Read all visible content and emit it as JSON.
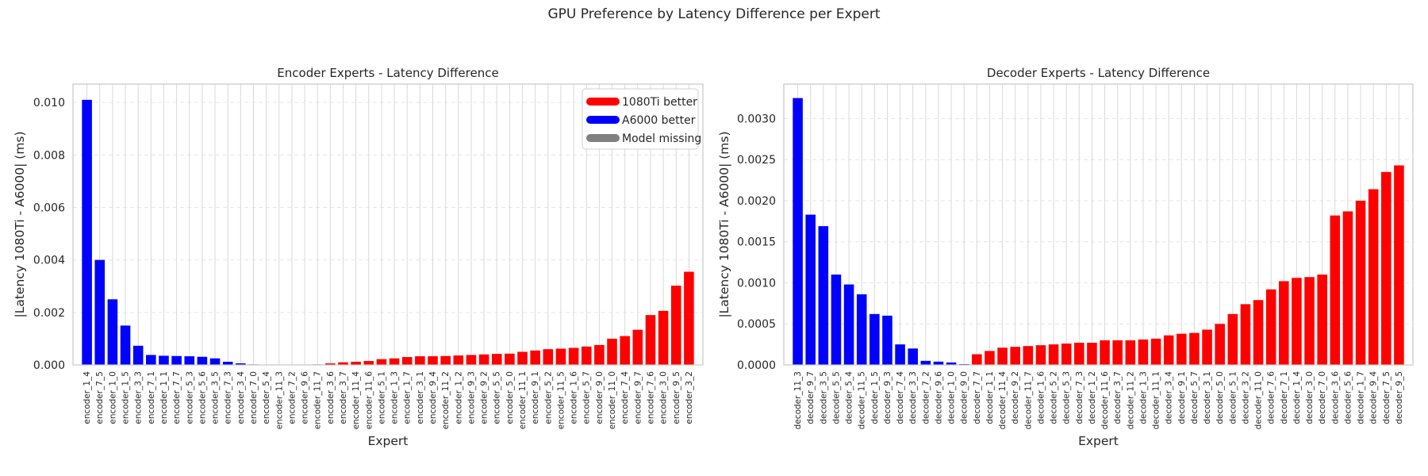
{
  "figure": {
    "suptitle": "GPU Preference by Latency Difference per Expert"
  },
  "legend": {
    "items": [
      {
        "label": "1080Ti better",
        "color": "#ff0000"
      },
      {
        "label": "A6000 better",
        "color": "#0000ff"
      },
      {
        "label": "Model missing",
        "color": "#808080"
      }
    ]
  },
  "chart_data": [
    {
      "type": "bar",
      "title": "Encoder Experts - Latency Difference",
      "xlabel": "Expert",
      "ylabel": "|Latency 1080Ti - A6000| (ms)",
      "ylim": [
        0,
        0.0107
      ],
      "yticks": [
        0.0,
        0.002,
        0.004,
        0.006,
        0.008,
        0.01
      ],
      "ytick_labels": [
        "0.000",
        "0.002",
        "0.004",
        "0.006",
        "0.008",
        "0.010"
      ],
      "grid": true,
      "legend": "top-right",
      "categories": [
        "encoder_1_4",
        "encoder_7_5",
        "encoder_1_0",
        "encoder_1_5",
        "encoder_3_3",
        "encoder_7_1",
        "encoder_1_1",
        "encoder_7_7",
        "encoder_5_3",
        "encoder_5_6",
        "encoder_3_5",
        "encoder_7_3",
        "encoder_3_4",
        "encoder_7_0",
        "encoder_5_4",
        "encoder_11_3",
        "encoder_7_2",
        "encoder_9_6",
        "encoder_11_7",
        "encoder_3_6",
        "encoder_3_7",
        "encoder_11_4",
        "encoder_11_6",
        "encoder_5_1",
        "encoder_1_3",
        "encoder_1_7",
        "encoder_3_1",
        "encoder_9_4",
        "encoder_11_2",
        "encoder_1_2",
        "encoder_9_3",
        "encoder_9_2",
        "encoder_5_5",
        "encoder_5_0",
        "encoder_11_1",
        "encoder_9_1",
        "encoder_5_2",
        "encoder_11_5",
        "encoder_1_6",
        "encoder_5_7",
        "encoder_9_0",
        "encoder_11_0",
        "encoder_7_4",
        "encoder_9_7",
        "encoder_7_6",
        "encoder_3_0",
        "encoder_9_5",
        "encoder_3_2"
      ],
      "values": [
        0.0101,
        0.004,
        0.0025,
        0.0015,
        0.00073,
        0.00038,
        0.00035,
        0.00034,
        0.00033,
        0.00031,
        0.00025,
        0.00012,
        6e-05,
        2e-05,
        1e-05,
        1e-05,
        1e-05,
        1e-05,
        2e-05,
        6e-05,
        0.0001,
        0.00012,
        0.00015,
        0.00022,
        0.00025,
        0.0003,
        0.00033,
        0.00033,
        0.00034,
        0.00036,
        0.00038,
        0.0004,
        0.00042,
        0.00043,
        0.0005,
        0.00055,
        0.0006,
        0.00062,
        0.00065,
        0.0007,
        0.00076,
        0.001,
        0.0011,
        0.00134,
        0.0019,
        0.00206,
        0.00302,
        0.00355
      ],
      "better": [
        "A6000",
        "A6000",
        "A6000",
        "A6000",
        "A6000",
        "A6000",
        "A6000",
        "A6000",
        "A6000",
        "A6000",
        "A6000",
        "A6000",
        "A6000",
        "A6000",
        "A6000",
        "A6000",
        "A6000",
        "1080Ti",
        "1080Ti",
        "1080Ti",
        "1080Ti",
        "1080Ti",
        "1080Ti",
        "1080Ti",
        "1080Ti",
        "1080Ti",
        "1080Ti",
        "1080Ti",
        "1080Ti",
        "1080Ti",
        "1080Ti",
        "1080Ti",
        "1080Ti",
        "1080Ti",
        "1080Ti",
        "1080Ti",
        "1080Ti",
        "1080Ti",
        "1080Ti",
        "1080Ti",
        "1080Ti",
        "1080Ti",
        "1080Ti",
        "1080Ti",
        "1080Ti",
        "1080Ti",
        "1080Ti",
        "1080Ti"
      ]
    },
    {
      "type": "bar",
      "title": "Decoder Experts - Latency Difference",
      "xlabel": "Expert",
      "ylabel": "|Latency 1080Ti - A6000| (ms)",
      "ylim": [
        0,
        0.00342
      ],
      "yticks": [
        0.0,
        0.0005,
        0.001,
        0.0015,
        0.002,
        0.0025,
        0.003
      ],
      "ytick_labels": [
        "0.0000",
        "0.0005",
        "0.0010",
        "0.0015",
        "0.0020",
        "0.0025",
        "0.0030"
      ],
      "grid": true,
      "categories": [
        "decoder_11_3",
        "decoder_9_7",
        "decoder_3_5",
        "decoder_5_5",
        "decoder_5_4",
        "decoder_11_5",
        "decoder_1_5",
        "decoder_9_3",
        "decoder_7_4",
        "decoder_3_3",
        "decoder_7_2",
        "decoder_9_6",
        "decoder_1_0",
        "decoder_9_0",
        "decoder_7_7",
        "decoder_1_1",
        "decoder_11_4",
        "decoder_9_2",
        "decoder_11_7",
        "decoder_1_6",
        "decoder_5_2",
        "decoder_5_3",
        "decoder_7_3",
        "decoder_1_2",
        "decoder_11_6",
        "decoder_3_7",
        "decoder_11_2",
        "decoder_1_3",
        "decoder_11_1",
        "decoder_3_4",
        "decoder_9_1",
        "decoder_5_7",
        "decoder_3_1",
        "decoder_5_0",
        "decoder_5_1",
        "decoder_3_2",
        "decoder_11_0",
        "decoder_7_6",
        "decoder_7_1",
        "decoder_1_4",
        "decoder_3_0",
        "decoder_7_0",
        "decoder_3_6",
        "decoder_5_6",
        "decoder_1_7",
        "decoder_9_4",
        "decoder_7_5",
        "decoder_9_5"
      ],
      "values": [
        0.00325,
        0.00183,
        0.00169,
        0.0011,
        0.00098,
        0.00086,
        0.00062,
        0.0006,
        0.00025,
        0.0002,
        5e-05,
        4e-05,
        3e-05,
        1e-05,
        0.00013,
        0.00017,
        0.00021,
        0.00022,
        0.00023,
        0.00024,
        0.00025,
        0.00026,
        0.00027,
        0.00027,
        0.0003,
        0.0003,
        0.0003,
        0.00031,
        0.00032,
        0.00036,
        0.00038,
        0.00039,
        0.00043,
        0.0005,
        0.00062,
        0.00074,
        0.00079,
        0.00092,
        0.00102,
        0.00106,
        0.00107,
        0.0011,
        0.00182,
        0.00187,
        0.002,
        0.00214,
        0.00235,
        0.00243
      ],
      "better": [
        "A6000",
        "A6000",
        "A6000",
        "A6000",
        "A6000",
        "A6000",
        "A6000",
        "A6000",
        "A6000",
        "A6000",
        "A6000",
        "A6000",
        "A6000",
        "A6000",
        "1080Ti",
        "1080Ti",
        "1080Ti",
        "1080Ti",
        "1080Ti",
        "1080Ti",
        "1080Ti",
        "1080Ti",
        "1080Ti",
        "1080Ti",
        "1080Ti",
        "1080Ti",
        "1080Ti",
        "1080Ti",
        "1080Ti",
        "1080Ti",
        "1080Ti",
        "1080Ti",
        "1080Ti",
        "1080Ti",
        "1080Ti",
        "1080Ti",
        "1080Ti",
        "1080Ti",
        "1080Ti",
        "1080Ti",
        "1080Ti",
        "1080Ti",
        "1080Ti",
        "1080Ti",
        "1080Ti",
        "1080Ti",
        "1080Ti",
        "1080Ti"
      ]
    }
  ]
}
